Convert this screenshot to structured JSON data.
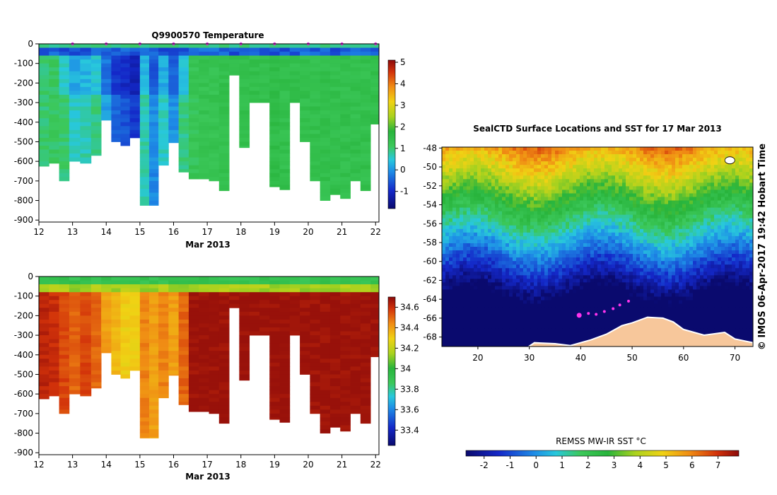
{
  "chart_data": [
    {
      "id": "temp",
      "type": "heatmap",
      "title": "Q9900570  Temperature",
      "xlabel": "Mar 2013",
      "ylabel": "",
      "xlim": [
        12,
        22.1
      ],
      "ylim": [
        -910,
        0
      ],
      "x_ticks": [
        12,
        13,
        14,
        15,
        16,
        17,
        18,
        19,
        20,
        21,
        22
      ],
      "y_ticks": [
        0,
        -100,
        -200,
        -300,
        -400,
        -500,
        -600,
        -700,
        -800,
        -900
      ],
      "colorbar": {
        "min": -1.8,
        "max": 5.1,
        "ticks": [
          -1,
          0,
          1,
          2,
          3,
          4,
          5
        ]
      },
      "profile_times": [
        12.15,
        12.45,
        12.75,
        13.05,
        13.4,
        13.7,
        14.0,
        14.3,
        14.55,
        14.85,
        15.15,
        15.4,
        15.7,
        16.0,
        16.3,
        16.6,
        16.9,
        17.2,
        17.5,
        17.8,
        18.1,
        18.4,
        18.7,
        19.0,
        19.3,
        19.6,
        19.9,
        20.2,
        20.5,
        20.8,
        21.1,
        21.4,
        21.7,
        22.0
      ],
      "profile_max_depth": [
        625,
        610,
        700,
        600,
        610,
        570,
        390,
        500,
        520,
        480,
        825,
        825,
        620,
        505,
        655,
        690,
        690,
        700,
        750,
        160,
        530,
        300,
        300,
        730,
        745,
        300,
        500,
        700,
        800,
        770,
        790,
        700,
        750,
        410
      ],
      "surface_layer_temp": -0.5,
      "deep_temp_profile_values": [
        1.0,
        1.1,
        0.6,
        0.2,
        0.3,
        0.5,
        -0.3,
        -0.8,
        -1.0,
        -1.2,
        0.3,
        -0.5,
        0.2,
        -0.4,
        0.5,
        1.2,
        1.3,
        1.3,
        1.4,
        1.4,
        1.4,
        1.4,
        1.4,
        1.5,
        1.4,
        1.4,
        1.4,
        1.4,
        1.4,
        1.4,
        1.4,
        1.4,
        1.4,
        1.4
      ],
      "surface_markers_x": [
        13,
        14,
        15,
        16,
        17,
        18,
        19,
        20,
        21,
        22
      ]
    },
    {
      "id": "sal",
      "type": "heatmap",
      "title": "",
      "xlabel": "Mar 2013",
      "ylabel": "",
      "xlim": [
        12,
        22.1
      ],
      "ylim": [
        -910,
        0
      ],
      "x_ticks": [
        12,
        13,
        14,
        15,
        16,
        17,
        18,
        19,
        20,
        21,
        22
      ],
      "y_ticks": [
        0,
        -100,
        -200,
        -300,
        -400,
        -500,
        -600,
        -700,
        -800,
        -900
      ],
      "colorbar": {
        "min": 33.25,
        "max": 34.7,
        "ticks": [
          33.4,
          33.6,
          33.8,
          34,
          34.2,
          34.4,
          34.6
        ]
      },
      "profile_times": [
        12.15,
        12.45,
        12.75,
        13.05,
        13.4,
        13.7,
        14.0,
        14.3,
        14.55,
        14.85,
        15.15,
        15.4,
        15.7,
        16.0,
        16.3,
        16.6,
        16.9,
        17.2,
        17.5,
        17.8,
        18.1,
        18.4,
        18.7,
        19.0,
        19.3,
        19.6,
        19.9,
        20.2,
        20.5,
        20.8,
        21.1,
        21.4,
        21.7,
        22.0
      ],
      "profile_max_depth": [
        625,
        610,
        700,
        600,
        610,
        570,
        390,
        500,
        520,
        480,
        825,
        825,
        620,
        505,
        655,
        690,
        690,
        700,
        750,
        160,
        530,
        300,
        300,
        730,
        745,
        300,
        500,
        700,
        800,
        770,
        790,
        700,
        750,
        410
      ],
      "surface_layer_sal": 33.9,
      "deep_sal_profile_values": [
        34.62,
        34.6,
        34.55,
        34.5,
        34.55,
        34.5,
        34.4,
        34.35,
        34.3,
        34.3,
        34.45,
        34.4,
        34.45,
        34.4,
        34.5,
        34.68,
        34.68,
        34.68,
        34.68,
        34.68,
        34.68,
        34.68,
        34.68,
        34.68,
        34.68,
        34.68,
        34.68,
        34.68,
        34.68,
        34.68,
        34.68,
        34.68,
        34.68,
        34.68
      ]
    },
    {
      "id": "map",
      "type": "heatmap",
      "title": "SealCTD Surface Locations and SST for 17 Mar 2013",
      "xlabel": "",
      "ylabel": "",
      "xlim": [
        13,
        73.5
      ],
      "ylim": [
        -69,
        -47.9
      ],
      "x_ticks": [
        20,
        30,
        40,
        50,
        60,
        70
      ],
      "y_ticks": [
        -48,
        -50,
        -52,
        -54,
        -56,
        -58,
        -60,
        -62,
        -64,
        -66,
        -68
      ],
      "colorbar_label": "REMSS MW-IR SST °C",
      "colorbar": {
        "min": -2.7,
        "max": 7.8,
        "ticks": [
          -2,
          -1,
          0,
          1,
          2,
          3,
          4,
          5,
          6,
          7
        ]
      },
      "side_text": "© IMOS 06-Apr-2017 19:42 Hobart Time",
      "track_points": [
        {
          "lon": 39.7,
          "lat": -65.7
        },
        {
          "lon": 41.5,
          "lat": -65.5
        },
        {
          "lon": 43.0,
          "lat": -65.6
        },
        {
          "lon": 44.6,
          "lat": -65.3
        },
        {
          "lon": 46.3,
          "lat": -65.0
        },
        {
          "lon": 47.6,
          "lat": -64.6
        },
        {
          "lon": 49.3,
          "lat": -64.2
        }
      ]
    }
  ]
}
